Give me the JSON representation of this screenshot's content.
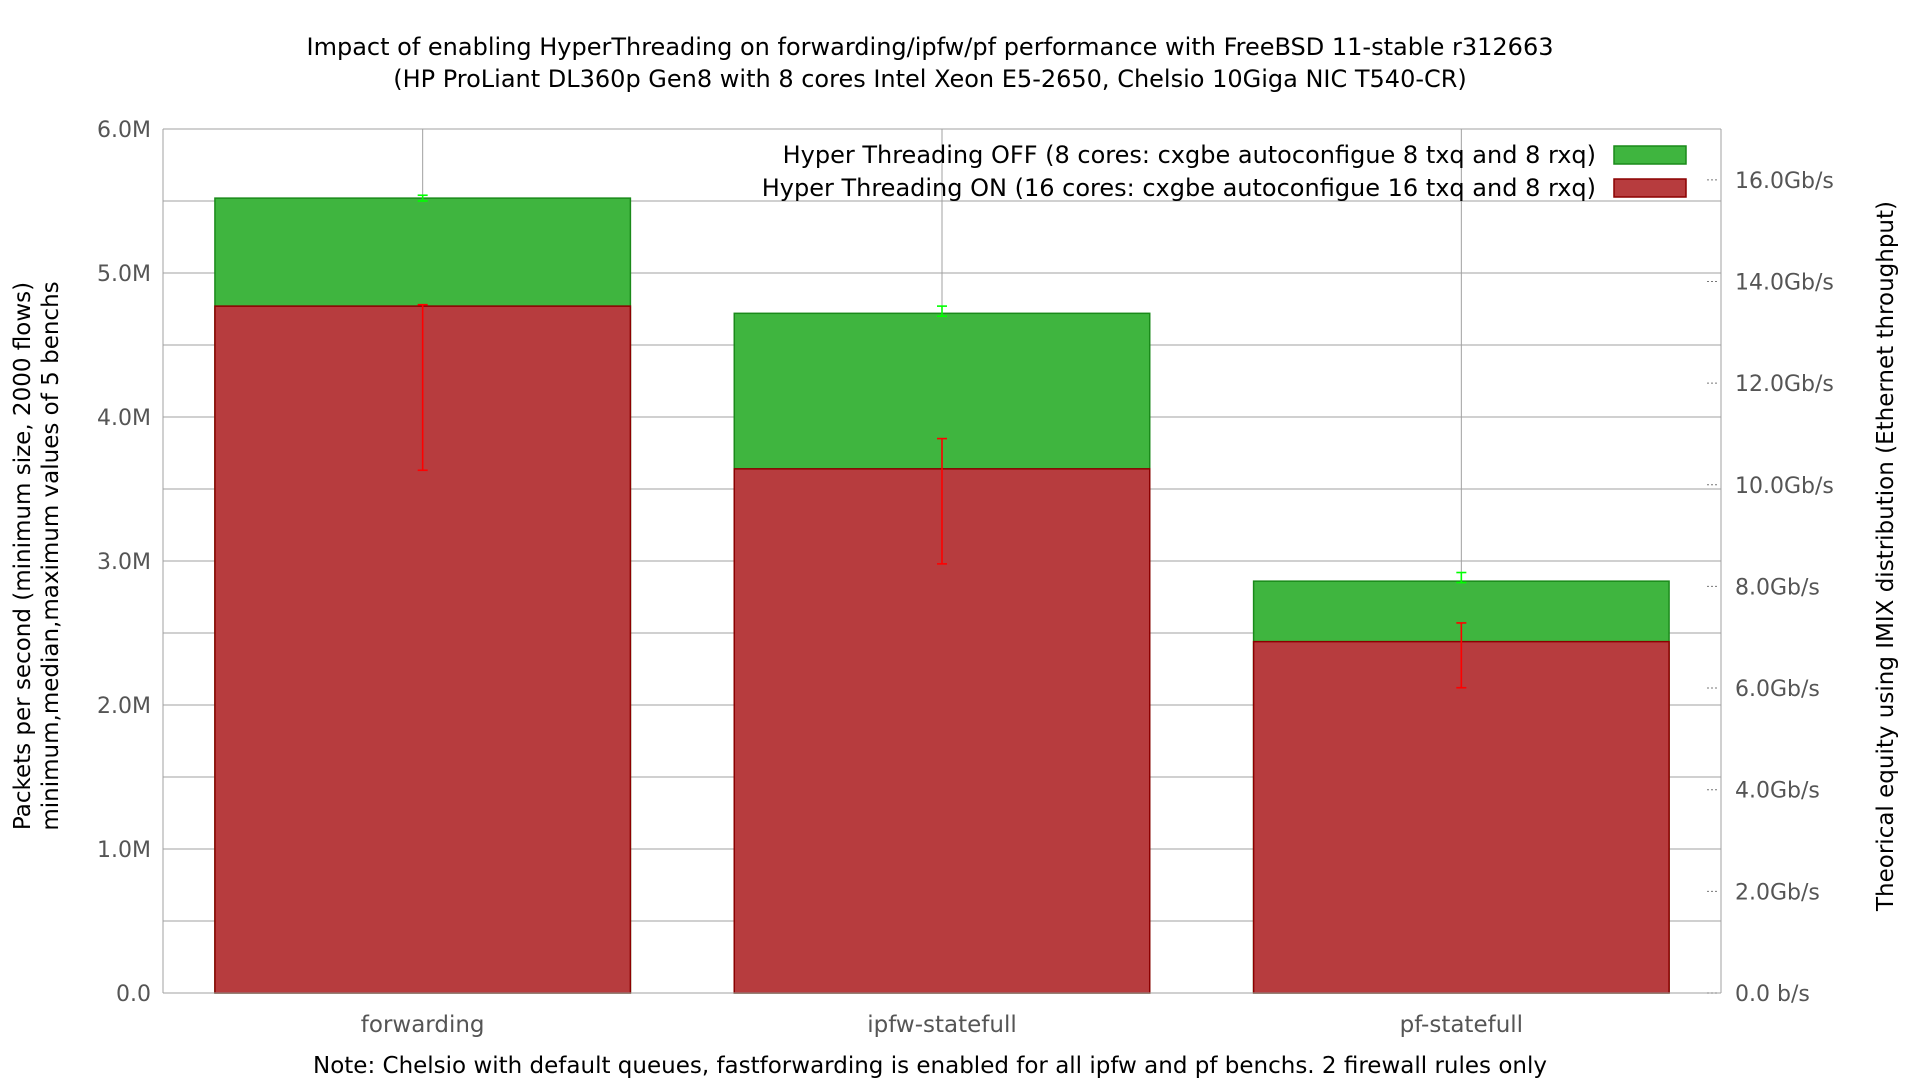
{
  "chart_data": {
    "type": "bar",
    "title": "Impact of enabling HyperThreading on forwarding/ipfw/pf performance with FreeBSD 11-stable r312663",
    "subtitle": "(HP ProLiant DL360p Gen8 with 8 cores Intel Xeon E5-2650, Chelsio 10Giga NIC T540-CR)",
    "ylabel": "Packets per second (minimum size, 2000 flows)",
    "ylabel2": "minimum,median,maximum values of 5 benchs",
    "y2label": "Theorical equity using IMIX distribution (Ethernet throughput)",
    "note": "Note: Chelsio with default queues, fastforwarding is enabled for all ipfw and pf benchs. 2 firewall rules only",
    "categories": [
      "forwarding",
      "ipfw-statefull",
      "pf-statefull"
    ],
    "ylim": [
      0,
      6000000
    ],
    "y_ticks": [
      {
        "value": 0,
        "label": "0.0"
      },
      {
        "value": 1000000,
        "label": "1.0M"
      },
      {
        "value": 2000000,
        "label": "2.0M"
      },
      {
        "value": 3000000,
        "label": "3.0M"
      },
      {
        "value": 4000000,
        "label": "4.0M"
      },
      {
        "value": 5000000,
        "label": "5.0M"
      },
      {
        "value": 6000000,
        "label": "6.0M"
      }
    ],
    "y2lim": [
      0,
      17000000000
    ],
    "y2_ticks": [
      {
        "value": 0,
        "label": "0.0 b/s"
      },
      {
        "value": 2000000000,
        "label": "2.0Gb/s"
      },
      {
        "value": 4000000000,
        "label": "4.0Gb/s"
      },
      {
        "value": 6000000000,
        "label": "6.0Gb/s"
      },
      {
        "value": 8000000000,
        "label": "8.0Gb/s"
      },
      {
        "value": 10000000000,
        "label": "10.0Gb/s"
      },
      {
        "value": 12000000000,
        "label": "12.0Gb/s"
      },
      {
        "value": 14000000000,
        "label": "14.0Gb/s"
      },
      {
        "value": 16000000000,
        "label": "16.0Gb/s"
      }
    ],
    "grid": true,
    "legend_position": "top-right",
    "series": [
      {
        "name": "Hyper Threading OFF (8 cores: cxgbe autoconfigue 8 txq and 8 rxq)",
        "color": "#3fb53f",
        "error_color": "#00ff00",
        "values": [
          5520000,
          4720000,
          2860000
        ],
        "min": [
          5500000,
          4700000,
          2850000
        ],
        "max": [
          5540000,
          4770000,
          2920000
        ]
      },
      {
        "name": "Hyper Threading ON (16 cores: cxgbe autoconfigue 16 txq and 8 rxq)",
        "color": "#b73c3e",
        "error_color": "#ff0000",
        "values": [
          4770000,
          3640000,
          2440000
        ],
        "min": [
          3630000,
          2980000,
          2120000
        ],
        "max": [
          4780000,
          3850000,
          2570000
        ]
      }
    ]
  }
}
